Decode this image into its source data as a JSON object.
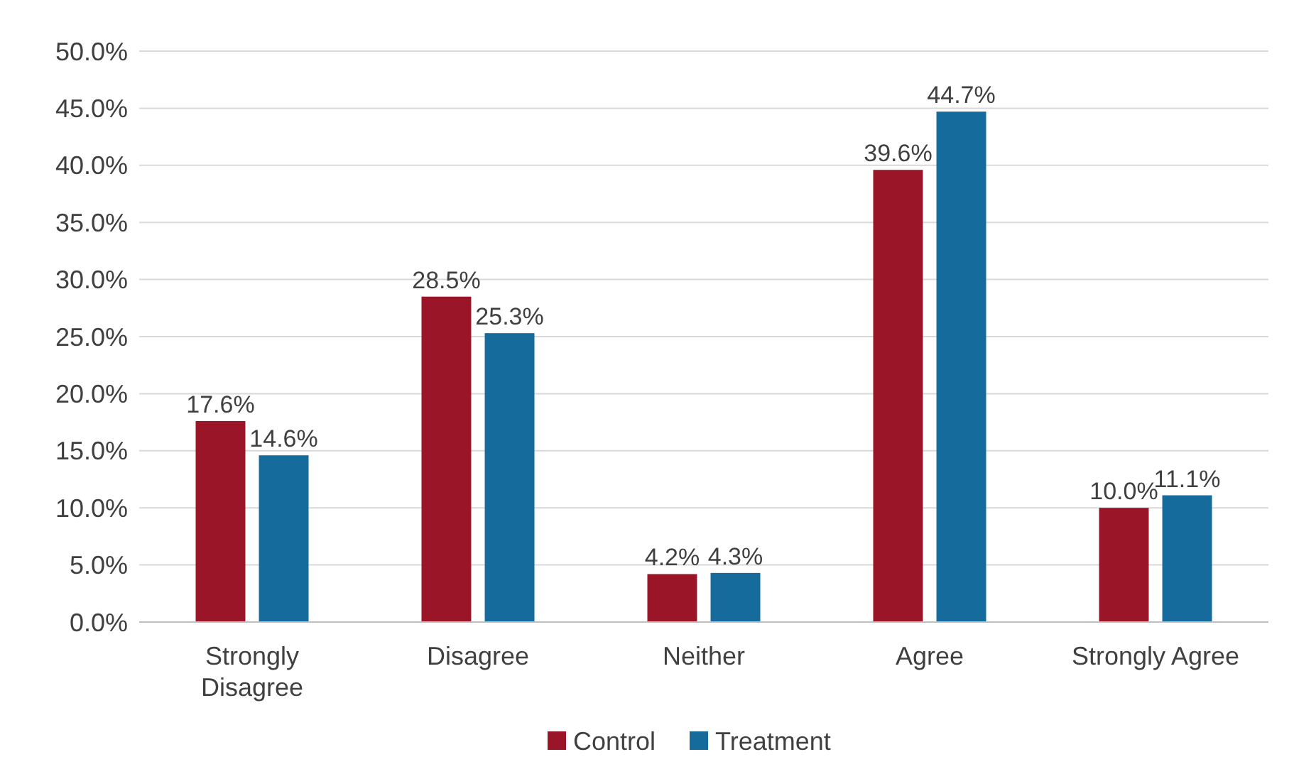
{
  "chart_data": {
    "type": "bar",
    "categories": [
      "Strongly Disagree",
      "Disagree",
      "Neither",
      "Agree",
      "Strongly Agree"
    ],
    "series": [
      {
        "name": "Control",
        "color": "#9b1528",
        "values": [
          17.6,
          28.5,
          4.2,
          39.6,
          10.0
        ],
        "value_labels": [
          "17.6%",
          "28.5%",
          "4.2%",
          "39.6%",
          "10.0%"
        ]
      },
      {
        "name": "Treatment",
        "color": "#156b9c",
        "values": [
          14.6,
          25.3,
          4.3,
          44.7,
          11.1
        ],
        "value_labels": [
          "14.6%",
          "25.3%",
          "4.3%",
          "44.7%",
          "11.1%"
        ]
      }
    ],
    "ylim": [
      0,
      50
    ],
    "yticks": [
      {
        "value": 0,
        "label": "0.0%"
      },
      {
        "value": 5,
        "label": "5.0%"
      },
      {
        "value": 10,
        "label": "10.0%"
      },
      {
        "value": 15,
        "label": "15.0%"
      },
      {
        "value": 20,
        "label": "20.0%"
      },
      {
        "value": 25,
        "label": "25.0%"
      },
      {
        "value": 30,
        "label": "30.0%"
      },
      {
        "value": 35,
        "label": "35.0%"
      },
      {
        "value": 40,
        "label": "40.0%"
      },
      {
        "value": 45,
        "label": "45.0%"
      },
      {
        "value": 50,
        "label": "50.0%"
      }
    ],
    "grid": "y",
    "legend": "bottom"
  }
}
